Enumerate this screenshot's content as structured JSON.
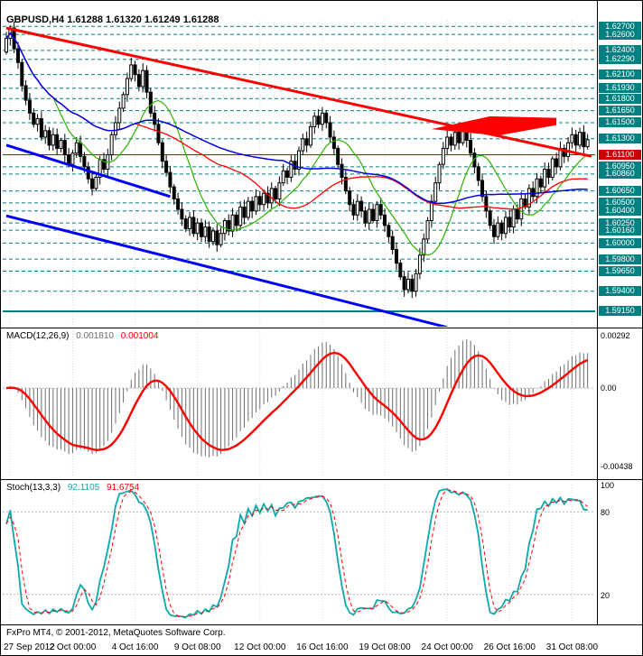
{
  "footer": {
    "copyright": "FxPro MT4, © 2001-2012, MetaQuotes Software Corp."
  },
  "chart_data": [
    {
      "type": "candlestick",
      "title": "GBPUSD,H4 1.61288 1.61320 1.61249 1.61288",
      "symbol": "GBPUSD",
      "timeframe": "H4",
      "current_bar": {
        "open": 1.61288,
        "high": 1.6132,
        "low": 1.61249,
        "close": 1.61288
      },
      "ylim": {
        "min": 1.5897,
        "max": 1.6277
      },
      "first_open": 1.6238,
      "closes": [
        1.6255,
        1.6268,
        1.6242,
        1.6225,
        1.6196,
        1.6178,
        1.6162,
        1.6148,
        1.6155,
        1.6132,
        1.614,
        1.6122,
        1.6135,
        1.6118,
        1.6128,
        1.611,
        1.6098,
        1.6112,
        1.6125,
        1.6108,
        1.6095,
        1.608,
        1.6068,
        1.6082,
        1.6104,
        1.6092,
        1.611,
        1.6135,
        1.615,
        1.6168,
        1.6185,
        1.6205,
        1.6222,
        1.621,
        1.6195,
        1.6215,
        1.6188,
        1.6162,
        1.6148,
        1.6125,
        1.6102,
        1.6088,
        1.607,
        1.6055,
        1.6042,
        1.603,
        1.6018,
        1.6032,
        1.6012,
        1.6025,
        1.6008,
        1.602,
        1.6002,
        1.6015,
        1.5998,
        1.6012,
        1.6028,
        1.6015,
        1.6035,
        1.6022,
        1.6045,
        1.6032,
        1.6052,
        1.604,
        1.6058,
        1.6048,
        1.6062,
        1.605,
        1.6068,
        1.6055,
        1.6075,
        1.609,
        1.6082,
        1.6102,
        1.6092,
        1.6115,
        1.613,
        1.6122,
        1.6145,
        1.6158,
        1.6148,
        1.6162,
        1.615,
        1.6132,
        1.6118,
        1.6098,
        1.6082,
        1.6065,
        1.6048,
        1.6035,
        1.6052,
        1.604,
        1.6025,
        1.6042,
        1.6028,
        1.6048,
        1.6035,
        1.6022,
        1.6008,
        1.5992,
        1.5975,
        1.5958,
        1.5942,
        1.5955,
        1.594,
        1.5962,
        1.5985,
        1.6005,
        1.6028,
        1.6052,
        1.6075,
        1.6098,
        1.6118,
        1.6132,
        1.6122,
        1.6138,
        1.6125,
        1.614,
        1.6128,
        1.6112,
        1.6095,
        1.6078,
        1.6058,
        1.604,
        1.6022,
        1.6008,
        1.6025,
        1.6012,
        1.6032,
        1.602,
        1.6042,
        1.603,
        1.6055,
        1.6045,
        1.6068,
        1.6058,
        1.608,
        1.607,
        1.6092,
        1.6082,
        1.6105,
        1.6095,
        1.6118,
        1.6108,
        1.6125,
        1.6135,
        1.6122,
        1.6138,
        1.612,
        1.61288
      ],
      "price_levels": [
        {
          "label": "1.62700",
          "value": 1.627,
          "color": "#008080",
          "line": "dashed"
        },
        {
          "label": "1.62600",
          "value": 1.626,
          "color": "#008080",
          "line": "dashed"
        },
        {
          "label": "1.62400",
          "value": 1.624,
          "color": "#008080",
          "line": "dashed"
        },
        {
          "label": "1.62290",
          "value": 1.6229,
          "color": "#008080",
          "line": "dashed"
        },
        {
          "label": "1.62100",
          "value": 1.621,
          "color": "#008080",
          "line": "dashed"
        },
        {
          "label": "1.61930",
          "value": 1.6193,
          "color": "#008080",
          "line": "dashed"
        },
        {
          "label": "1.61800",
          "value": 1.618,
          "color": "#008080",
          "line": "dashed"
        },
        {
          "label": "1.61650",
          "value": 1.6165,
          "color": "#008080",
          "line": "dashed"
        },
        {
          "label": "1.61500",
          "value": 1.615,
          "color": "#008080",
          "line": "dashed"
        },
        {
          "label": "1.61300",
          "value": 1.613,
          "color": "#008080",
          "line": "dashed"
        },
        {
          "label": "1.61100",
          "value": 1.611,
          "color": "#CC0000",
          "line": "solid"
        },
        {
          "label": "1.60950",
          "value": 1.6095,
          "color": "#008080",
          "line": "dashed"
        },
        {
          "label": "1.60860",
          "value": 1.6086,
          "color": "#008080",
          "line": "dashed"
        },
        {
          "label": "1.60650",
          "value": 1.6065,
          "color": "#008080",
          "line": "dashed"
        },
        {
          "label": "1.60500",
          "value": 1.605,
          "color": "#008080",
          "line": "dashed"
        },
        {
          "label": "1.60400",
          "value": 1.604,
          "color": "#008080",
          "line": "dashed"
        },
        {
          "label": "1.60250",
          "value": 1.6025,
          "color": "#008080",
          "line": "dashed"
        },
        {
          "label": "1.60160",
          "value": 1.6016,
          "color": "#008080",
          "line": "dashed"
        },
        {
          "label": "1.60000",
          "value": 1.6,
          "color": "#008080",
          "line": "dashed"
        },
        {
          "label": "1.59800",
          "value": 1.598,
          "color": "#008080",
          "line": "dashed"
        },
        {
          "label": "1.59650",
          "value": 1.5965,
          "color": "#008080",
          "line": "dashed"
        },
        {
          "label": "1.59400",
          "value": 1.594,
          "color": "#008080",
          "line": "dashed"
        },
        {
          "label": "1.59150",
          "value": 1.5915,
          "color": "#008080",
          "line": "solid-thick"
        }
      ],
      "moving_averages": [
        {
          "name": "ma-fast-green",
          "period": 13,
          "color": "#2DB200",
          "width": 1.2
        },
        {
          "name": "ma-mid-red",
          "period": 34,
          "color": "#FF0000",
          "width": 1.3
        },
        {
          "name": "ma-slow-blue",
          "period": 72,
          "color": "#0000E0",
          "width": 1.5
        }
      ],
      "trendlines": [
        {
          "name": "red-descending-trendline",
          "color": "#FF0000",
          "width": 3,
          "i1": 0,
          "p1": 1.6268,
          "i2": 150,
          "p2": 1.6108
        },
        {
          "name": "blue-trendline-upper",
          "color": "#0000FF",
          "width": 3,
          "i1": 0,
          "p1": 1.6122,
          "i2": 42,
          "p2": 1.6058
        },
        {
          "name": "blue-trendline-lower",
          "color": "#0000FF",
          "width": 3,
          "i1": 0,
          "p1": 1.6034,
          "i2": 113,
          "p2": 1.5895
        }
      ],
      "pennant": {
        "name": "red-pennant-shape",
        "color": "#FF0000",
        "points": [
          [
            109,
            1.6142
          ],
          [
            124,
            1.6158
          ],
          [
            141,
            1.6156
          ],
          [
            141,
            1.6147
          ],
          [
            126,
            1.6134
          ]
        ]
      },
      "time_axis": [
        {
          "label": "27 Sep 2012",
          "i": 1
        },
        {
          "label": "2 Oct 00:00",
          "i": 17
        },
        {
          "label": "4 Oct 16:00",
          "i": 33
        },
        {
          "label": "9 Oct 08:00",
          "i": 49
        },
        {
          "label": "12 Oct 00:00",
          "i": 65
        },
        {
          "label": "16 Oct 16:00",
          "i": 81
        },
        {
          "label": "19 Oct 08:00",
          "i": 97
        },
        {
          "label": "24 Oct 00:00",
          "i": 113
        },
        {
          "label": "26 Oct 16:00",
          "i": 129
        },
        {
          "label": "31 Oct 08:00",
          "i": 145
        }
      ]
    },
    {
      "type": "macd",
      "title": "MACD(12,26,9)",
      "params": {
        "fast": 12,
        "slow": 26,
        "signal": 9
      },
      "value_main": "0.001810",
      "value_signal": "0.001004",
      "ylim": {
        "min": -0.00497,
        "max": 0.00317
      },
      "zero_level": 0,
      "scale_labels": [
        {
          "text": "0.00292",
          "v": 0.00292
        },
        {
          "text": "0.00",
          "v": 0
        },
        {
          "text": "-0.00438",
          "v": -0.00438
        }
      ],
      "colors": {
        "histogram": "#6e6e6e",
        "signal": "#FF0000"
      }
    },
    {
      "type": "stochastic",
      "title": "Stoch(13,3,3)",
      "params": {
        "k": 13,
        "d": 3,
        "slowing": 3
      },
      "value_k": "92.1105",
      "value_d": "91.6754",
      "ylim": {
        "min": 0,
        "max": 100
      },
      "levels": [
        80,
        20
      ],
      "scale_labels": [
        {
          "text": "100",
          "v": 100
        },
        {
          "text": "80",
          "v": 80
        },
        {
          "text": "20",
          "v": 20
        }
      ],
      "colors": {
        "k": "#0FA8A8",
        "d": "#FF0000"
      }
    }
  ]
}
